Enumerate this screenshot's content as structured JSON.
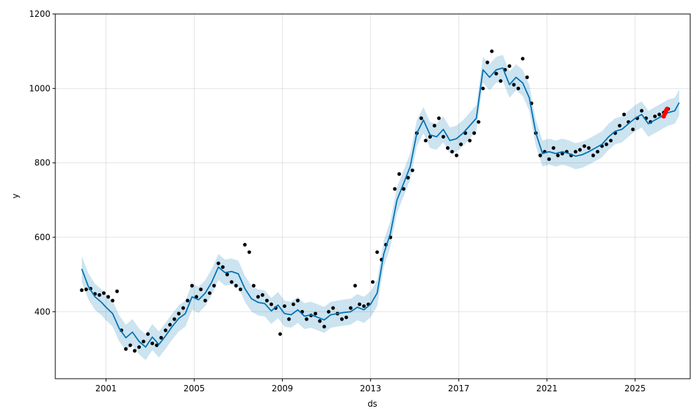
{
  "chart_data": {
    "type": "line",
    "title": "",
    "xlabel": "ds",
    "ylabel": "y",
    "xlim": [
      1998.7,
      2027.5
    ],
    "ylim": [
      220,
      1200
    ],
    "grid": true,
    "x_ticks": [
      {
        "value": 2001,
        "label": "2001"
      },
      {
        "value": 2005,
        "label": "2005"
      },
      {
        "value": 2009,
        "label": "2009"
      },
      {
        "value": 2013,
        "label": "2013"
      },
      {
        "value": 2017,
        "label": "2017"
      },
      {
        "value": 2021,
        "label": "2021"
      },
      {
        "value": 2025,
        "label": "2025"
      }
    ],
    "y_ticks": [
      {
        "value": 400,
        "label": "400"
      },
      {
        "value": 600,
        "label": "600"
      },
      {
        "value": 800,
        "label": "800"
      },
      {
        "value": 1000,
        "label": "1000"
      },
      {
        "value": 1200,
        "label": "1200"
      }
    ],
    "colors": {
      "forecast_line": "#0072b2",
      "uncertainty_band": "#0072b2",
      "observed_points": "#000000",
      "highlight_points": "#ff0000"
    },
    "series": [
      {
        "kind": "forecast",
        "x": [
          1999.9,
          2000.2,
          2000.5,
          2000.8,
          2001.0,
          2001.3,
          2001.6,
          2001.9,
          2002.2,
          2002.5,
          2002.8,
          2003.1,
          2003.4,
          2003.7,
          2004.0,
          2004.3,
          2004.6,
          2004.9,
          2005.2,
          2005.5,
          2005.8,
          2006.1,
          2006.4,
          2006.7,
          2007.0,
          2007.3,
          2007.6,
          2007.9,
          2008.2,
          2008.5,
          2008.8,
          2009.1,
          2009.4,
          2009.7,
          2010.0,
          2010.3,
          2010.6,
          2010.9,
          2011.2,
          2011.5,
          2011.8,
          2012.1,
          2012.4,
          2012.7,
          2013.0,
          2013.3,
          2013.6,
          2013.9,
          2014.2,
          2014.5,
          2014.8,
          2015.1,
          2015.4,
          2015.7,
          2016.0,
          2016.3,
          2016.6,
          2016.9,
          2017.2,
          2017.5,
          2017.8,
          2018.1,
          2018.4,
          2018.7,
          2019.0,
          2019.3,
          2019.6,
          2019.9,
          2020.2,
          2020.5,
          2020.8,
          2021.1,
          2021.4,
          2021.7,
          2022.0,
          2022.3,
          2022.6,
          2022.9,
          2023.2,
          2023.5,
          2023.8,
          2024.1,
          2024.4,
          2024.7,
          2025.0,
          2025.3,
          2025.6,
          2025.9,
          2026.2,
          2026.5,
          2026.8,
          2027.0
        ],
        "y": [
          515,
          468,
          440,
          425,
          412,
          395,
          355,
          330,
          345,
          320,
          305,
          332,
          312,
          335,
          360,
          382,
          395,
          440,
          432,
          450,
          480,
          520,
          505,
          508,
          502,
          462,
          435,
          425,
          422,
          402,
          418,
          395,
          392,
          405,
          388,
          392,
          385,
          378,
          392,
          395,
          398,
          400,
          412,
          405,
          420,
          450,
          555,
          610,
          700,
          745,
          790,
          880,
          915,
          875,
          870,
          890,
          860,
          865,
          880,
          900,
          920,
          1050,
          1030,
          1050,
          1055,
          1010,
          1030,
          1015,
          975,
          880,
          825,
          830,
          825,
          830,
          825,
          818,
          822,
          830,
          840,
          850,
          870,
          885,
          890,
          905,
          920,
          930,
          905,
          915,
          925,
          935,
          940,
          962
        ]
      },
      {
        "kind": "observed",
        "x": [
          1999.9,
          2000.1,
          2000.3,
          2000.5,
          2000.7,
          2000.9,
          2001.1,
          2001.3,
          2001.5,
          2001.7,
          2001.9,
          2002.1,
          2002.3,
          2002.5,
          2002.7,
          2002.9,
          2003.1,
          2003.3,
          2003.5,
          2003.7,
          2003.9,
          2004.1,
          2004.3,
          2004.5,
          2004.7,
          2004.9,
          2005.1,
          2005.3,
          2005.5,
          2005.7,
          2005.9,
          2006.1,
          2006.3,
          2006.5,
          2006.7,
          2006.9,
          2007.1,
          2007.3,
          2007.5,
          2007.7,
          2007.9,
          2008.1,
          2008.3,
          2008.5,
          2008.7,
          2008.9,
          2009.1,
          2009.3,
          2009.5,
          2009.7,
          2009.9,
          2010.1,
          2010.3,
          2010.5,
          2010.7,
          2010.9,
          2011.1,
          2011.3,
          2011.5,
          2011.7,
          2011.9,
          2012.1,
          2012.3,
          2012.5,
          2012.7,
          2012.9,
          2013.1,
          2013.3,
          2013.5,
          2013.7,
          2013.9,
          2014.1,
          2014.3,
          2014.5,
          2014.7,
          2014.9,
          2015.1,
          2015.3,
          2015.5,
          2015.7,
          2015.9,
          2016.1,
          2016.3,
          2016.5,
          2016.7,
          2016.9,
          2017.1,
          2017.3,
          2017.5,
          2017.7,
          2017.9,
          2018.1,
          2018.3,
          2018.5,
          2018.7,
          2018.9,
          2019.1,
          2019.3,
          2019.5,
          2019.7,
          2019.9,
          2020.1,
          2020.3,
          2020.5,
          2020.7,
          2020.9,
          2021.1,
          2021.3,
          2021.5,
          2021.7,
          2021.9,
          2022.1,
          2022.3,
          2022.5,
          2022.7,
          2022.9,
          2023.1,
          2023.3,
          2023.5,
          2023.7,
          2023.9,
          2024.1,
          2024.3,
          2024.5,
          2024.7,
          2024.9,
          2025.1,
          2025.3,
          2025.5,
          2025.7,
          2025.9,
          2026.1,
          2026.3,
          2026.5
        ],
        "y": [
          458,
          460,
          462,
          448,
          445,
          450,
          440,
          430,
          455,
          350,
          300,
          310,
          295,
          305,
          320,
          340,
          315,
          310,
          330,
          350,
          365,
          380,
          395,
          410,
          430,
          470,
          440,
          460,
          430,
          450,
          470,
          530,
          520,
          500,
          480,
          470,
          460,
          580,
          560,
          470,
          440,
          445,
          430,
          420,
          410,
          340,
          415,
          380,
          420,
          430,
          400,
          380,
          390,
          395,
          375,
          360,
          400,
          410,
          395,
          380,
          385,
          410,
          470,
          420,
          415,
          420,
          480,
          560,
          540,
          580,
          600,
          730,
          770,
          730,
          760,
          780,
          880,
          920,
          860,
          870,
          900,
          920,
          870,
          840,
          830,
          820,
          850,
          880,
          860,
          880,
          910,
          1000,
          1070,
          1100,
          1040,
          1020,
          1050,
          1060,
          1010,
          1000,
          1080,
          1030,
          960,
          880,
          820,
          830,
          810,
          840,
          820,
          825,
          830,
          820,
          830,
          835,
          845,
          840,
          820,
          830,
          845,
          850,
          860,
          880,
          900,
          930,
          910,
          890,
          920,
          940,
          920,
          910,
          925,
          930,
          935,
          945
        ]
      },
      {
        "kind": "highlight",
        "x": [
          2026.3,
          2026.35,
          2026.4,
          2026.45
        ],
        "y": [
          925,
          932,
          940,
          945
        ]
      }
    ]
  }
}
